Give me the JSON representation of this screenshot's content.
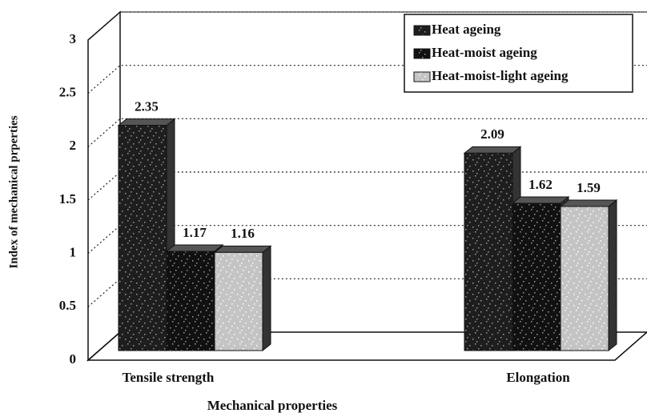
{
  "chart_data": {
    "type": "bar3d",
    "categories": [
      "Tensile strength",
      "Elongation"
    ],
    "series": [
      {
        "name": "Heat ageing",
        "color": "#1e1e1e",
        "values": [
          2.35,
          2.09
        ]
      },
      {
        "name": "Heat-moist ageing",
        "color": "#111111",
        "values": [
          1.17,
          1.62
        ]
      },
      {
        "name": "Heat-moist-light ageing",
        "color": "#c4c4c4",
        "values": [
          1.16,
          1.59
        ]
      }
    ],
    "xlabel": "Mechanical properties",
    "ylabel": "Index of mechanical prperties",
    "ylim": [
      0,
      3
    ],
    "yticks": [
      0,
      0.5,
      1,
      1.5,
      2,
      2.5,
      3
    ],
    "grid": true,
    "legend": "top-right"
  }
}
